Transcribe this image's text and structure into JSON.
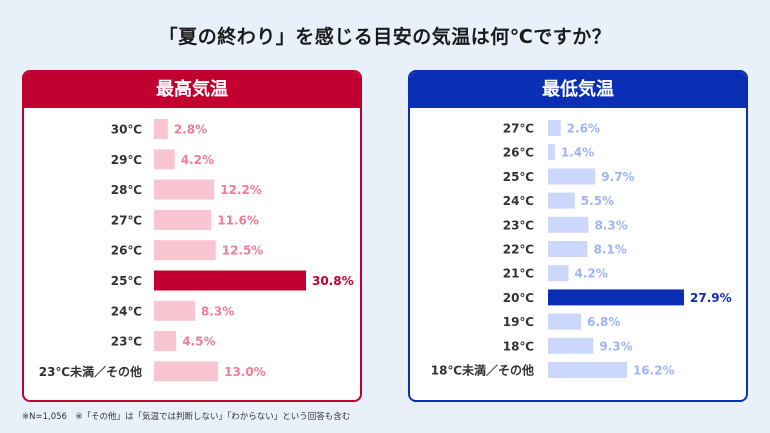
{
  "title": "「夏の終わり」を感じる目安の気温は何℃ですか？",
  "footnote": "※N=1,056　※「その他」は「気温では判断しない」「わからない」という回答も含む",
  "colors": {
    "high_bar": "#f9c5d1",
    "high_highlight": "#c2002f",
    "high_label": "#f07c97",
    "low_bar": "#ccd8fb",
    "low_highlight": "#0a2fb5",
    "low_label": "#9fb4f2"
  },
  "chart_data": [
    {
      "type": "bar",
      "orientation": "horizontal",
      "title": "最高気温",
      "categories": [
        "30℃",
        "29℃",
        "28℃",
        "27℃",
        "26℃",
        "25℃",
        "24℃",
        "23℃",
        "23℃未満／その他"
      ],
      "values": [
        2.8,
        4.2,
        12.2,
        11.6,
        12.5,
        30.8,
        8.3,
        4.5,
        13.0
      ],
      "value_labels": [
        "2.8%",
        "4.2%",
        "12.2%",
        "11.6%",
        "12.5%",
        "30.8%",
        "8.3%",
        "4.5%",
        "13.0%"
      ],
      "highlight": "25℃",
      "unit": "%",
      "xlim": [
        0,
        30.8
      ]
    },
    {
      "type": "bar",
      "orientation": "horizontal",
      "title": "最低気温",
      "categories": [
        "27℃",
        "26℃",
        "25℃",
        "24℃",
        "23℃",
        "22℃",
        "21℃",
        "20℃",
        "19℃",
        "18℃",
        "18℃未満／その他"
      ],
      "values": [
        2.6,
        1.4,
        9.7,
        5.5,
        8.3,
        8.1,
        4.2,
        27.9,
        6.8,
        9.3,
        16.2
      ],
      "value_labels": [
        "2.6%",
        "1.4%",
        "9.7%",
        "5.5%",
        "8.3%",
        "8.1%",
        "4.2%",
        "27.9%",
        "6.8%",
        "9.3%",
        "16.2%"
      ],
      "highlight": "20℃",
      "unit": "%",
      "xlim": [
        0,
        27.9
      ]
    }
  ]
}
